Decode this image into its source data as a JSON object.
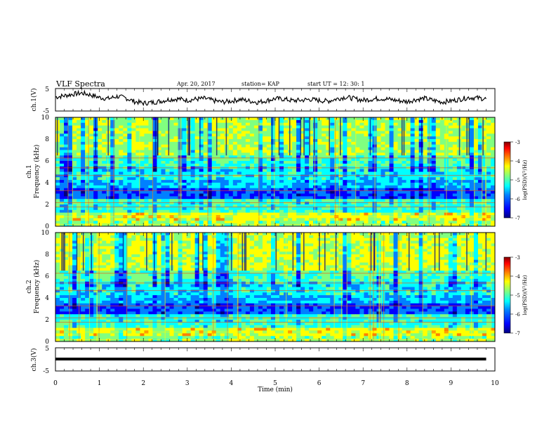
{
  "header": {
    "title": "VLF Spectra",
    "date": "Apr. 20, 2017",
    "station": "station= KAP",
    "start": "start  UT =   12: 30: 1"
  },
  "chart_data": [
    {
      "type": "line",
      "ylabel": "ch.1(V)",
      "ylim": [
        -5,
        5
      ],
      "yticks": [
        "5",
        "-5"
      ],
      "xlim": [
        0,
        10
      ],
      "series": [
        {
          "x": [
            0,
            0.2,
            0.4,
            0.6,
            0.8,
            1.0,
            1.2,
            1.4,
            1.6,
            1.8,
            2.0,
            2.2,
            2.4,
            2.6,
            2.8,
            3.0,
            3.2,
            3.4,
            3.6,
            3.8,
            4.0,
            4.2,
            4.4,
            4.6,
            4.8,
            5.0,
            5.2,
            5.4,
            5.6,
            5.8,
            6.0,
            6.2,
            6.4,
            6.6,
            6.8,
            7.0,
            7.2,
            7.4,
            7.6,
            7.8,
            8.0,
            8.2,
            8.4,
            8.6,
            8.8,
            9.0,
            9.2,
            9.4,
            9.6,
            9.8
          ],
          "values": [
            1.2,
            1.8,
            2.5,
            3.0,
            2.2,
            1.0,
            0.5,
            1.5,
            0.8,
            -0.8,
            -1.5,
            -1.2,
            -0.6,
            0.2,
            0.4,
            -0.2,
            0.3,
            0.6,
            -0.4,
            -1.0,
            -0.6,
            0.2,
            -0.5,
            -1.1,
            -0.4,
            0.5,
            0.3,
            -0.4,
            -0.2,
            0.2,
            -0.3,
            -0.6,
            0.4,
            1.2,
            0.5,
            -0.2,
            0.3,
            0.6,
            0.2,
            -0.4,
            -0.8,
            0.1,
            0.6,
            -0.3,
            -1.0,
            -0.5,
            0.2,
            1.0,
            0.8,
            0.4
          ]
        }
      ]
    },
    {
      "type": "heatmap",
      "ylabel": "ch.1\nFrequency  (kHz)",
      "ylim": [
        0,
        10
      ],
      "yticks": [
        "0",
        "2",
        "4",
        "6",
        "8",
        "10"
      ],
      "xlim": [
        0,
        10
      ],
      "colorbar": {
        "label": "log(PSD)(V²/Hz)",
        "range": [
          -7,
          -3
        ],
        "ticks": [
          "-3",
          "-4",
          "-5",
          "-6",
          "-7"
        ]
      }
    },
    {
      "type": "heatmap",
      "ylabel": "ch.2\nFrequency  (kHz)",
      "ylim": [
        0,
        10
      ],
      "yticks": [
        "0",
        "2",
        "4",
        "6",
        "8",
        "10"
      ],
      "xlim": [
        0,
        10
      ],
      "colorbar": {
        "label": "log(PSD)(V²/Hz)",
        "range": [
          -7,
          -3
        ],
        "ticks": [
          "-3",
          "-4",
          "-5",
          "-6",
          "-7"
        ]
      }
    },
    {
      "type": "line",
      "ylabel": "ch.3(V)",
      "ylim": [
        -5,
        5
      ],
      "yticks": [
        "5",
        "-5"
      ],
      "xlim": [
        0,
        10
      ],
      "xlabel": "Time  (min)",
      "xticks": [
        "0",
        "1",
        "2",
        "3",
        "4",
        "5",
        "6",
        "7",
        "8",
        "9",
        "10"
      ],
      "series": [
        {
          "x": [
            0,
            9.8
          ],
          "values": [
            0,
            0
          ]
        }
      ]
    }
  ],
  "colors": {
    "colormap": [
      "#00007f",
      "#0000ff",
      "#0080ff",
      "#00ffff",
      "#80ff80",
      "#ffff00",
      "#ff8000",
      "#ff0000",
      "#7f0000"
    ]
  }
}
